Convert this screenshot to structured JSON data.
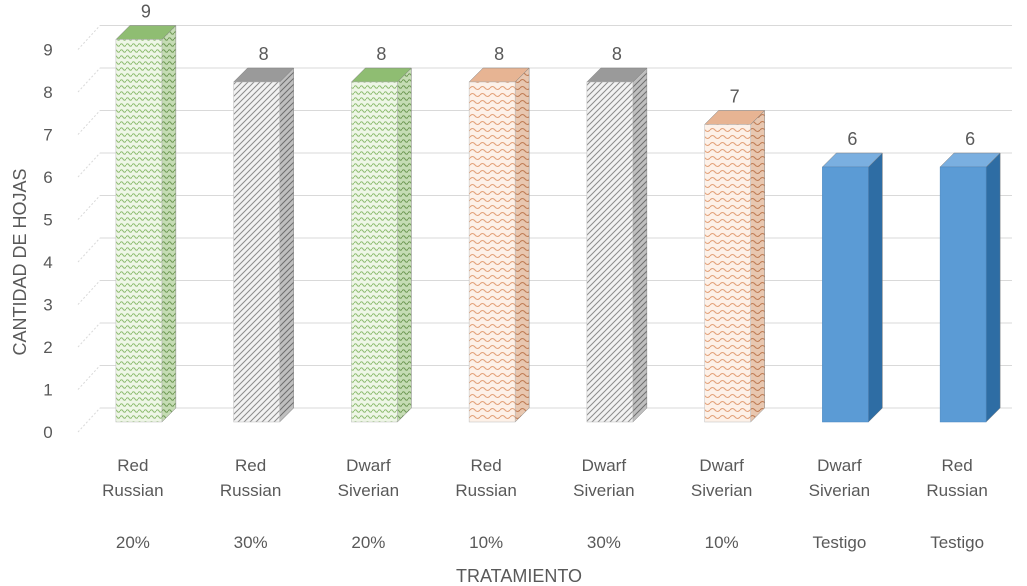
{
  "chart_data": {
    "type": "bar",
    "title": "",
    "xlabel": "TRATAMIENTO",
    "ylabel": "CANTIDAD DE HOJAS",
    "ylim": [
      0,
      9
    ],
    "y_ticks": [
      "0",
      "1",
      "2",
      "3",
      "4",
      "5",
      "6",
      "7",
      "8",
      "9"
    ],
    "grid": true,
    "style": "3d-column",
    "categories": [
      {
        "variety": [
          "Red",
          "Russian"
        ],
        "treatment": "20%"
      },
      {
        "variety": [
          "Red",
          "Russian"
        ],
        "treatment": "30%"
      },
      {
        "variety": [
          "Dwarf",
          "Siverian"
        ],
        "treatment": "20%"
      },
      {
        "variety": [
          "Red",
          "Russian"
        ],
        "treatment": "10%"
      },
      {
        "variety": [
          "Dwarf",
          "Siverian"
        ],
        "treatment": "30%"
      },
      {
        "variety": [
          "Dwarf",
          "Siverian"
        ],
        "treatment": "10%"
      },
      {
        "variety": [
          "Dwarf",
          "Siverian"
        ],
        "treatment": "Testigo"
      },
      {
        "variety": [
          "Red",
          "Russian"
        ],
        "treatment": "Testigo"
      }
    ],
    "values": [
      9,
      8,
      8,
      8,
      8,
      7,
      6,
      6
    ],
    "data_labels": [
      "9",
      "8",
      "8",
      "8",
      "8",
      "7",
      "6",
      "6"
    ],
    "bar_styles": [
      "green-pattern",
      "gray-pattern",
      "green-pattern",
      "peach-pattern",
      "gray-pattern",
      "peach-pattern",
      "blue-solid",
      "blue-solid"
    ],
    "colors": {
      "green-pattern": "#a9d08e",
      "gray-pattern": "#a6a6a6",
      "peach-pattern": "#f4b183",
      "blue-solid": "#5b9bd5",
      "axis_text": "#595959",
      "grid": "#d9d9d9"
    }
  }
}
